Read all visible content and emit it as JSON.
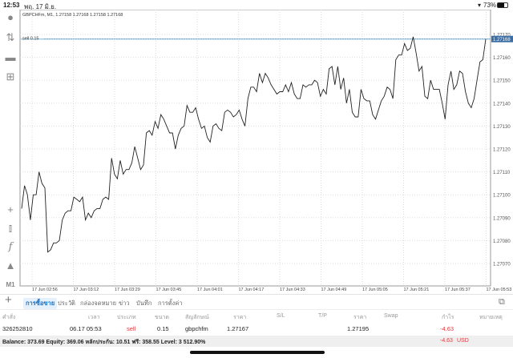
{
  "status_bar": {
    "time": "12:53",
    "date": "พฤ. 17 มิ.ย.",
    "battery": "73%",
    "battery_level": 0.73
  },
  "chart": {
    "header": "GBPCHFm, M1, 1.27158 1.27168 1.27158 1.27168",
    "order_line_label": "sell 0.15",
    "current_price_label": "1.27168",
    "accent": "#3a6ea5",
    "order_line_color": "#a9cde0"
  },
  "toolbar": {
    "timeframe": "M1",
    "icons": [
      "account-icon",
      "trade-arrows-icon",
      "chat-icon",
      "new-document-icon",
      "crosshair-icon",
      "chart-type-icon",
      "indicators-icon",
      "objects-icon"
    ]
  },
  "chart_data": {
    "type": "line",
    "title": "GBPCHFm, M1",
    "ylim": [
      1.27065,
      1.27172
    ],
    "y_ticks": [
      "1.27170",
      "1.27160",
      "1.27150",
      "1.27140",
      "1.27130",
      "1.27120",
      "1.27110",
      "1.27100",
      "1.27090",
      "1.27080",
      "1.27070"
    ],
    "x_ticks": [
      "17 Jun 02:56",
      "17 Jun 03:12",
      "17 Jun 03:29",
      "17 Jun 03:45",
      "17 Jun 04:01",
      "17 Jun 04:17",
      "17 Jun 04:33",
      "17 Jun 04:49",
      "17 Jun 05:05",
      "17 Jun 05:21",
      "17 Jun 05:37",
      "17 Jun 05:53"
    ],
    "grid": true,
    "order_line": 1.27168,
    "values": [
      1.27094,
      1.27104,
      1.271,
      1.27089,
      1.271,
      1.271,
      1.2711,
      1.27105,
      1.27103,
      1.27075,
      1.27076,
      1.27079,
      1.27079,
      1.2708,
      1.27089,
      1.27092,
      1.27093,
      1.27093,
      1.27099,
      1.27098,
      1.27097,
      1.27099,
      1.27089,
      1.27092,
      1.2709,
      1.27093,
      1.27094,
      1.27094,
      1.27098,
      1.27099,
      1.27098,
      1.27116,
      1.27109,
      1.27107,
      1.27115,
      1.27109,
      1.27111,
      1.27111,
      1.27114,
      1.27121,
      1.27116,
      1.27111,
      1.27113,
      1.27127,
      1.27128,
      1.27126,
      1.27132,
      1.27129,
      1.27135,
      1.27133,
      1.2713,
      1.27127,
      1.27127,
      1.2712,
      1.27126,
      1.27129,
      1.2713,
      1.27139,
      1.27136,
      1.27136,
      1.27138,
      1.27133,
      1.27129,
      1.2713,
      1.27125,
      1.27123,
      1.2713,
      1.27131,
      1.27129,
      1.27128,
      1.27136,
      1.27137,
      1.27136,
      1.27134,
      1.27135,
      1.27137,
      1.27133,
      1.2713,
      1.27142,
      1.27147,
      1.27147,
      1.27145,
      1.27153,
      1.27149,
      1.27153,
      1.27151,
      1.27148,
      1.27146,
      1.27144,
      1.27145,
      1.27145,
      1.27148,
      1.27145,
      1.27149,
      1.27144,
      1.27142,
      1.27142,
      1.27148,
      1.27147,
      1.27148,
      1.27148,
      1.2715,
      1.27149,
      1.27143,
      1.27146,
      1.27144,
      1.27155,
      1.27156,
      1.27148,
      1.27156,
      1.27146,
      1.27151,
      1.2714,
      1.27146,
      1.27136,
      1.27134,
      1.27134,
      1.27146,
      1.27142,
      1.27141,
      1.27141,
      1.27135,
      1.27133,
      1.27137,
      1.27141,
      1.27143,
      1.27147,
      1.27146,
      1.27142,
      1.27159,
      1.27161,
      1.27161,
      1.27166,
      1.27163,
      1.27164,
      1.27169,
      1.27162,
      1.27154,
      1.27156,
      1.27143,
      1.27142,
      1.2715,
      1.27146,
      1.27146,
      1.27146,
      1.2714,
      1.27133,
      1.27148,
      1.27154,
      1.27146,
      1.27148,
      1.27154,
      1.27153,
      1.27145,
      1.2714,
      1.27138,
      1.27142,
      1.2715,
      1.27158,
      1.27159,
      1.27168
    ]
  },
  "tabs": {
    "add": "+",
    "items": [
      {
        "label": "การซื้อขาย",
        "active": true
      },
      {
        "label": "ประวัติ"
      },
      {
        "label": "กล่องจดหมาย"
      },
      {
        "label": "ข่าว"
      },
      {
        "label": "บันทึก"
      },
      {
        "label": "การตั้งค่า"
      }
    ]
  },
  "table": {
    "headers": [
      "คำสั่ง",
      "เวลา",
      "ประเภท",
      "ขนาด",
      "สัญลักษณ์",
      "ราคา",
      "S/L",
      "T/P",
      "ราคา",
      "Swap",
      "กำไร",
      "หมายเหตุ"
    ],
    "rows": [
      {
        "order": "326252810",
        "time": "06.17 05:53",
        "type": "sell",
        "volume": "0.15",
        "symbol": "gbpchfm",
        "open_price": "1.27167",
        "sl": "",
        "tp": "",
        "price": "1.27195",
        "swap": "",
        "profit": "-4.63",
        "comment": ""
      }
    ]
  },
  "balance": {
    "text": "Balance: 373.69 Equity: 369.06 หลักประกัน: 10.51 ฟรี: 358.55 Level: 3 512.90%",
    "profit": "-4.63",
    "currency": "USD"
  },
  "colors": {
    "loss": "#e0393e",
    "active_tab": "#1a73c8"
  }
}
